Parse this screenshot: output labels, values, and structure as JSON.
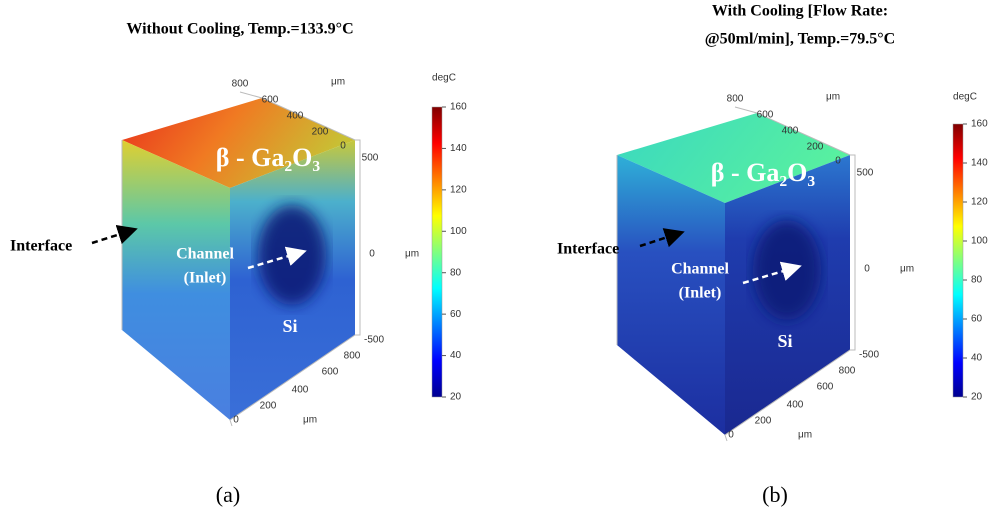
{
  "panels": [
    {
      "title": [
        "Without Cooling, Temp.=133.9°C"
      ],
      "label": "(a)",
      "material": "β - Ga₂O₃",
      "interface": "Interface",
      "channel": [
        "Channel",
        "(Inlet)"
      ],
      "substrate": "Si",
      "top_axis": [
        "800",
        "600",
        "400",
        "200",
        "0",
        "μm"
      ],
      "vertical_axis": [
        "500",
        "0",
        "-500",
        "μm"
      ],
      "bottom_axis": [
        "800",
        "600",
        "400",
        "200",
        "0",
        "μm"
      ],
      "colorbar": {
        "unit": "degC",
        "range": [
          20,
          160
        ],
        "ticks": [
          160,
          140,
          120,
          100,
          80,
          60,
          40,
          20
        ]
      }
    },
    {
      "title": [
        "With Cooling [Flow Rate:",
        "@50ml/min], Temp.=79.5°C"
      ],
      "label": "(b)",
      "material": "β - Ga₂O₃",
      "interface": "Interface",
      "channel": [
        "Channel",
        "(Inlet)"
      ],
      "substrate": "Si",
      "top_axis": [
        "800",
        "600",
        "400",
        "200",
        "0",
        "μm"
      ],
      "vertical_axis": [
        "500",
        "0",
        "-500",
        "μm"
      ],
      "bottom_axis": [
        "800",
        "600",
        "400",
        "200",
        "0",
        "μm"
      ],
      "colorbar": {
        "unit": "degC",
        "range": [
          20,
          160
        ],
        "ticks": [
          160,
          140,
          120,
          100,
          80,
          60,
          40,
          20
        ]
      }
    }
  ]
}
